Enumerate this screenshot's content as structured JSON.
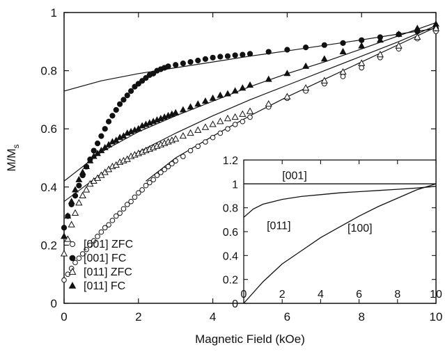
{
  "chart_data": [
    {
      "type": "scatter",
      "xlabel": "Magnetic Field (kOe)",
      "ylabel": "M/M",
      "ylabel_sub": "s",
      "xlim": [
        0,
        10
      ],
      "ylim": [
        0,
        1
      ],
      "xticks": [
        0,
        2,
        4,
        6,
        8,
        10
      ],
      "yticks": [
        0,
        0.2,
        0.4,
        0.6,
        0.8,
        1
      ],
      "ytick_labels": [
        "0",
        "0.2",
        "0.4",
        "0.6",
        "0.8",
        "1"
      ],
      "legend_position": "lower-left",
      "series": [
        {
          "name": "[001] ZFC",
          "marker": "open-circle",
          "x": [
            0,
            0.1,
            0.2,
            0.3,
            0.4,
            0.5,
            0.6,
            0.7,
            0.8,
            0.9,
            1.0,
            1.1,
            1.2,
            1.3,
            1.4,
            1.5,
            1.6,
            1.7,
            1.8,
            1.9,
            2.0,
            2.1,
            2.2,
            2.3,
            2.4,
            2.5,
            2.6,
            2.7,
            2.8,
            2.9,
            3.0,
            3.2,
            3.4,
            3.6,
            3.8,
            4.0,
            4.2,
            4.4,
            4.6,
            4.8,
            5.0,
            5.5,
            6.0,
            6.5,
            7.0,
            7.5,
            8.0,
            8.5,
            9.0,
            9.5,
            10.0
          ],
          "y": [
            0.08,
            0.1,
            0.12,
            0.14,
            0.155,
            0.17,
            0.185,
            0.2,
            0.215,
            0.23,
            0.245,
            0.26,
            0.27,
            0.285,
            0.3,
            0.31,
            0.325,
            0.34,
            0.35,
            0.365,
            0.38,
            0.39,
            0.405,
            0.415,
            0.425,
            0.44,
            0.45,
            0.46,
            0.47,
            0.48,
            0.49,
            0.505,
            0.525,
            0.54,
            0.555,
            0.57,
            0.585,
            0.6,
            0.615,
            0.625,
            0.64,
            0.675,
            0.705,
            0.73,
            0.755,
            0.78,
            0.81,
            0.845,
            0.875,
            0.91,
            0.935
          ]
        },
        {
          "name": "[001] FC",
          "marker": "filled-circle",
          "x": [
            0,
            0.1,
            0.2,
            0.3,
            0.4,
            0.5,
            0.6,
            0.7,
            0.8,
            0.9,
            1.0,
            1.1,
            1.2,
            1.3,
            1.4,
            1.5,
            1.6,
            1.7,
            1.8,
            1.9,
            2.0,
            2.1,
            2.2,
            2.3,
            2.4,
            2.5,
            2.6,
            2.7,
            2.8,
            3.0,
            3.2,
            3.4,
            3.6,
            3.8,
            4.0,
            4.2,
            4.4,
            4.6,
            4.8,
            5.0,
            5.5,
            6.0,
            6.5,
            7.0,
            7.5,
            8.0,
            8.5,
            9.0,
            9.5,
            10.0
          ],
          "y": [
            0.26,
            0.3,
            0.34,
            0.37,
            0.405,
            0.44,
            0.47,
            0.495,
            0.525,
            0.55,
            0.575,
            0.6,
            0.625,
            0.645,
            0.665,
            0.685,
            0.7,
            0.715,
            0.73,
            0.745,
            0.755,
            0.765,
            0.775,
            0.785,
            0.79,
            0.8,
            0.805,
            0.81,
            0.815,
            0.82,
            0.825,
            0.83,
            0.835,
            0.84,
            0.845,
            0.848,
            0.85,
            0.853,
            0.855,
            0.858,
            0.865,
            0.872,
            0.88,
            0.888,
            0.895,
            0.905,
            0.915,
            0.925,
            0.935,
            0.945
          ]
        },
        {
          "name": "[011] ZFC",
          "marker": "open-triangle",
          "x": [
            0,
            0.1,
            0.2,
            0.3,
            0.4,
            0.5,
            0.6,
            0.7,
            0.8,
            0.9,
            1.0,
            1.1,
            1.2,
            1.3,
            1.4,
            1.5,
            1.6,
            1.7,
            1.8,
            1.9,
            2.0,
            2.1,
            2.2,
            2.3,
            2.4,
            2.5,
            2.6,
            2.7,
            2.8,
            2.9,
            3.0,
            3.2,
            3.4,
            3.6,
            3.8,
            4.0,
            4.2,
            4.4,
            4.6,
            4.8,
            5.0,
            5.5,
            6.0,
            6.5,
            7.0,
            7.5,
            8.0,
            8.5,
            9.0,
            9.5,
            10.0
          ],
          "y": [
            0.17,
            0.22,
            0.27,
            0.31,
            0.345,
            0.37,
            0.39,
            0.41,
            0.42,
            0.43,
            0.44,
            0.45,
            0.46,
            0.47,
            0.475,
            0.485,
            0.49,
            0.495,
            0.505,
            0.51,
            0.515,
            0.52,
            0.525,
            0.53,
            0.535,
            0.54,
            0.545,
            0.55,
            0.555,
            0.56,
            0.565,
            0.575,
            0.585,
            0.595,
            0.605,
            0.615,
            0.625,
            0.635,
            0.64,
            0.65,
            0.66,
            0.685,
            0.71,
            0.74,
            0.765,
            0.795,
            0.825,
            0.855,
            0.885,
            0.915,
            0.945
          ]
        },
        {
          "name": "[011] FC",
          "marker": "filled-triangle",
          "x": [
            0,
            0.1,
            0.2,
            0.3,
            0.4,
            0.5,
            0.6,
            0.7,
            0.8,
            0.9,
            1.0,
            1.1,
            1.2,
            1.3,
            1.4,
            1.5,
            1.6,
            1.7,
            1.8,
            1.9,
            2.0,
            2.1,
            2.2,
            2.3,
            2.4,
            2.5,
            2.6,
            2.7,
            2.8,
            2.9,
            3.0,
            3.2,
            3.4,
            3.6,
            3.8,
            4.0,
            4.2,
            4.4,
            4.6,
            4.8,
            5.0,
            5.5,
            6.0,
            6.5,
            7.0,
            7.5,
            8.0,
            8.5,
            9.0,
            9.5,
            10.0
          ],
          "y": [
            0.23,
            0.3,
            0.35,
            0.39,
            0.425,
            0.45,
            0.47,
            0.49,
            0.505,
            0.515,
            0.525,
            0.535,
            0.545,
            0.555,
            0.56,
            0.57,
            0.575,
            0.585,
            0.59,
            0.595,
            0.6,
            0.61,
            0.615,
            0.62,
            0.625,
            0.63,
            0.635,
            0.64,
            0.645,
            0.65,
            0.655,
            0.665,
            0.675,
            0.685,
            0.695,
            0.705,
            0.715,
            0.72,
            0.73,
            0.74,
            0.75,
            0.77,
            0.79,
            0.815,
            0.84,
            0.865,
            0.885,
            0.905,
            0.925,
            0.945,
            0.96
          ]
        }
      ],
      "fit_lines": [
        {
          "label": "[001] FC fit",
          "x": [
            0,
            1,
            2,
            3,
            4,
            5,
            6,
            7,
            8,
            9,
            10
          ],
          "y": [
            0.73,
            0.765,
            0.79,
            0.81,
            0.83,
            0.85,
            0.868,
            0.887,
            0.906,
            0.926,
            0.945
          ]
        },
        {
          "label": "[011] FC fit",
          "x": [
            0,
            1,
            2,
            3,
            4,
            5,
            6,
            7,
            8,
            9,
            10
          ],
          "y": [
            0.42,
            0.52,
            0.59,
            0.645,
            0.695,
            0.745,
            0.79,
            0.83,
            0.875,
            0.92,
            0.965
          ]
        },
        {
          "label": "[011] ZFC fit",
          "x": [
            0,
            1,
            2,
            3,
            4,
            5,
            6,
            7,
            8,
            9,
            10
          ],
          "y": [
            0.35,
            0.445,
            0.52,
            0.585,
            0.645,
            0.7,
            0.75,
            0.8,
            0.85,
            0.9,
            0.955
          ]
        },
        {
          "label": "[001] ZFC fit",
          "x": [
            2.2,
            3,
            4,
            5,
            6,
            7,
            8,
            9,
            10
          ],
          "y": [
            0.42,
            0.5,
            0.575,
            0.645,
            0.71,
            0.77,
            0.83,
            0.89,
            0.95
          ]
        }
      ]
    },
    {
      "type": "line",
      "inset": true,
      "xlim": [
        0,
        10
      ],
      "ylim": [
        0,
        1.2
      ],
      "xticks": [
        0,
        2,
        4,
        6,
        8,
        10
      ],
      "yticks": [
        0,
        0.2,
        0.4,
        0.6,
        0.8,
        1,
        1.2
      ],
      "ytick_labels": [
        "0",
        "0.2",
        "0.4",
        "0.6",
        "0.8",
        "1",
        "1.2"
      ],
      "series": [
        {
          "name": "[001]",
          "x": [
            0,
            10
          ],
          "y": [
            1,
            1
          ]
        },
        {
          "name": "[011]",
          "x": [
            0,
            0.5,
            1,
            2,
            3,
            4,
            5,
            6,
            7,
            8,
            9,
            10
          ],
          "y": [
            0.72,
            0.79,
            0.83,
            0.87,
            0.895,
            0.91,
            0.925,
            0.935,
            0.945,
            0.955,
            0.965,
            0.98
          ]
        },
        {
          "name": "[100]",
          "x": [
            0,
            1,
            2,
            3,
            4,
            5,
            6,
            7,
            8,
            9,
            10
          ],
          "y": [
            0,
            0.18,
            0.33,
            0.44,
            0.55,
            0.64,
            0.73,
            0.81,
            0.88,
            0.95,
            1.0
          ]
        }
      ]
    }
  ]
}
